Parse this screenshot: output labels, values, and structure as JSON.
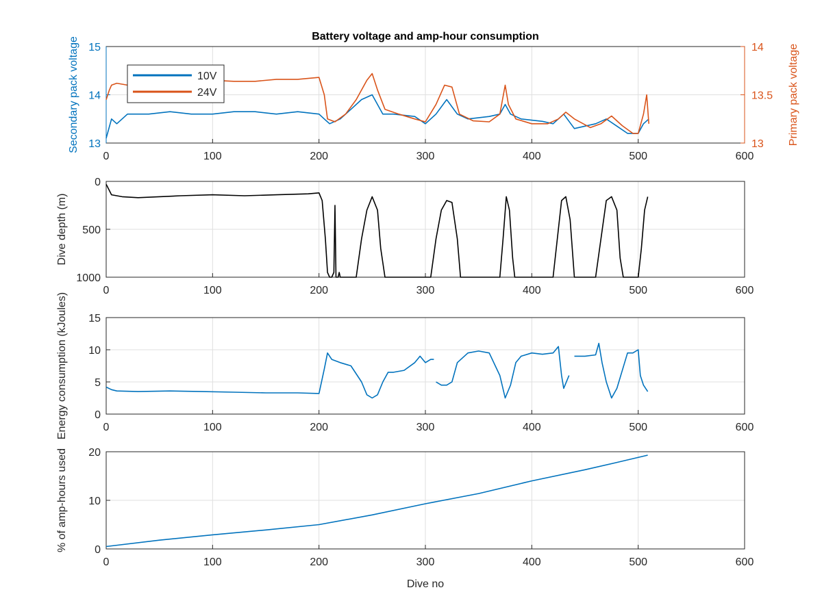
{
  "title": "Battery voltage and amp-hour consumption",
  "colors": {
    "blue": "#0072BD",
    "orange": "#D95319",
    "black": "#000000",
    "axis": "#262626",
    "grid": "#dfdfdf"
  },
  "chart_data": [
    {
      "type": "line",
      "title": "Battery voltage and amp-hour consumption",
      "xlabel": "",
      "ylabel": "Secondary pack voltage",
      "ylabel_right": "Primary pack voltage",
      "xlim": [
        0,
        600
      ],
      "ylim": [
        13,
        15
      ],
      "ylim_right": [
        13,
        14
      ],
      "xticks": [
        "0",
        "100",
        "200",
        "300",
        "400",
        "500",
        "600"
      ],
      "yticks": [
        "13",
        "14",
        "15"
      ],
      "yticks_right": [
        "13",
        "13.5",
        "14"
      ],
      "grid": true,
      "legend": "top-left",
      "series": [
        {
          "name": "10V",
          "axis": "left",
          "x": [
            0,
            5,
            10,
            20,
            40,
            60,
            80,
            100,
            120,
            140,
            160,
            180,
            200,
            205,
            210,
            220,
            230,
            240,
            250,
            260,
            270,
            290,
            300,
            310,
            320,
            330,
            340,
            360,
            370,
            375,
            380,
            390,
            410,
            420,
            430,
            440,
            450,
            460,
            470,
            480,
            490,
            500,
            505,
            510
          ],
          "y": [
            13.1,
            13.5,
            13.4,
            13.6,
            13.6,
            13.65,
            13.6,
            13.6,
            13.65,
            13.65,
            13.6,
            13.65,
            13.6,
            13.5,
            13.4,
            13.5,
            13.7,
            13.9,
            14.0,
            13.6,
            13.6,
            13.55,
            13.4,
            13.6,
            13.9,
            13.6,
            13.5,
            13.55,
            13.6,
            13.8,
            13.6,
            13.5,
            13.45,
            13.4,
            13.6,
            13.3,
            13.35,
            13.4,
            13.5,
            13.35,
            13.2,
            13.2,
            13.4,
            13.5
          ]
        },
        {
          "name": "24V",
          "axis": "right",
          "x": [
            0,
            3,
            5,
            10,
            20,
            40,
            60,
            80,
            100,
            120,
            140,
            160,
            180,
            200,
            205,
            208,
            215,
            225,
            235,
            245,
            250,
            255,
            262,
            275,
            290,
            300,
            310,
            318,
            325,
            332,
            345,
            360,
            370,
            375,
            378,
            385,
            400,
            415,
            425,
            432,
            440,
            455,
            465,
            475,
            485,
            495,
            500,
            505,
            508,
            510
          ],
          "y": [
            13.45,
            13.55,
            13.6,
            13.62,
            13.6,
            13.62,
            13.62,
            13.65,
            13.65,
            13.64,
            13.64,
            13.66,
            13.66,
            13.68,
            13.5,
            13.25,
            13.22,
            13.3,
            13.45,
            13.65,
            13.72,
            13.55,
            13.35,
            13.3,
            13.25,
            13.22,
            13.4,
            13.6,
            13.58,
            13.3,
            13.23,
            13.22,
            13.3,
            13.6,
            13.4,
            13.25,
            13.2,
            13.2,
            13.25,
            13.32,
            13.25,
            13.16,
            13.2,
            13.28,
            13.18,
            13.1,
            13.1,
            13.3,
            13.5,
            13.2
          ]
        }
      ]
    },
    {
      "type": "line",
      "ylabel": "Dive depth (m)",
      "xlim": [
        0,
        600
      ],
      "ylim": [
        0,
        1000
      ],
      "y_reversed": true,
      "xticks": [
        "0",
        "100",
        "200",
        "300",
        "400",
        "500",
        "600"
      ],
      "yticks": [
        "0",
        "500",
        "1000"
      ],
      "grid": true,
      "series": [
        {
          "x": [
            0,
            5,
            15,
            30,
            50,
            70,
            100,
            130,
            160,
            190,
            200,
            203,
            206,
            208,
            210,
            212,
            214,
            215,
            216,
            217,
            218,
            219,
            220,
            235,
            240,
            245,
            250,
            255,
            258,
            262,
            265,
            300,
            305,
            310,
            315,
            320,
            325,
            330,
            333,
            336,
            370,
            373,
            376,
            379,
            382,
            384,
            420,
            424,
            428,
            432,
            436,
            440,
            460,
            465,
            470,
            475,
            480,
            483,
            486,
            495,
            500,
            503,
            506,
            509
          ],
          "y": [
            30,
            140,
            160,
            170,
            160,
            150,
            140,
            150,
            140,
            130,
            120,
            200,
            600,
            950,
            1000,
            1000,
            950,
            250,
            1000,
            1000,
            1000,
            950,
            1000,
            1000,
            600,
            300,
            160,
            300,
            700,
            1000,
            1000,
            1000,
            1000,
            600,
            300,
            200,
            220,
            600,
            1000,
            1000,
            1000,
            600,
            160,
            300,
            800,
            1000,
            1000,
            600,
            200,
            160,
            400,
            1000,
            1000,
            600,
            200,
            160,
            300,
            800,
            1000,
            1000,
            1000,
            700,
            300,
            160
          ]
        }
      ]
    },
    {
      "type": "line",
      "ylabel": "Energy consumption (kJoules)",
      "xlim": [
        0,
        600
      ],
      "ylim": [
        0,
        15
      ],
      "xticks": [
        "0",
        "100",
        "200",
        "300",
        "400",
        "500",
        "600"
      ],
      "yticks": [
        "0",
        "5",
        "10",
        "15"
      ],
      "grid": true,
      "series": [
        {
          "x": [
            0,
            5,
            10,
            30,
            60,
            90,
            120,
            150,
            180,
            200,
            205,
            208,
            212,
            220,
            230,
            240,
            245,
            250,
            255,
            260,
            265,
            270,
            280,
            290,
            295,
            300,
            305,
            308,
            null,
            310,
            315,
            320,
            325,
            330,
            340,
            350,
            360,
            370,
            375,
            380,
            385,
            390,
            400,
            410,
            420,
            425,
            428,
            430,
            435,
            null,
            440,
            450,
            460,
            463,
            466,
            470,
            475,
            480,
            490,
            495,
            500,
            502,
            505,
            509
          ],
          "y": [
            4.2,
            3.8,
            3.6,
            3.5,
            3.6,
            3.5,
            3.4,
            3.3,
            3.3,
            3.2,
            7.0,
            9.5,
            8.5,
            8.0,
            7.5,
            5.0,
            3.0,
            2.5,
            3.0,
            5.0,
            6.5,
            6.5,
            6.8,
            8.0,
            9.0,
            8.0,
            8.5,
            8.5,
            null,
            5.0,
            4.5,
            4.5,
            5.0,
            8.0,
            9.5,
            9.8,
            9.5,
            6.0,
            2.5,
            4.5,
            8.0,
            9.0,
            9.5,
            9.3,
            9.5,
            10.5,
            6.0,
            4.0,
            6.0,
            null,
            9.0,
            9.0,
            9.2,
            11.0,
            8.0,
            5.0,
            2.5,
            4.0,
            9.5,
            9.5,
            10.0,
            6.0,
            4.5,
            3.5
          ]
        }
      ]
    },
    {
      "type": "line",
      "xlabel": "Dive no",
      "ylabel": "% of amp-hours used",
      "xlim": [
        0,
        600
      ],
      "ylim": [
        0,
        20
      ],
      "xticks": [
        "0",
        "100",
        "200",
        "300",
        "400",
        "500",
        "600"
      ],
      "yticks": [
        "0",
        "10",
        "20"
      ],
      "grid": true,
      "series": [
        {
          "x": [
            0,
            50,
            100,
            150,
            200,
            250,
            300,
            350,
            400,
            450,
            480,
            509
          ],
          "y": [
            0.5,
            1.8,
            2.9,
            3.9,
            5.0,
            7.0,
            9.3,
            11.4,
            14.0,
            16.3,
            17.8,
            19.3
          ]
        }
      ]
    }
  ]
}
